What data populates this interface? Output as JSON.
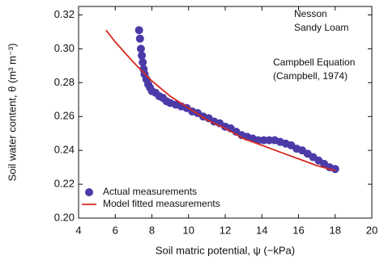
{
  "chart_data": {
    "type": "scatter",
    "x_label": "Soil matric potential, ψ (−kPa)",
    "y_label": "Soil water content, θ (m³ m⁻³)",
    "annotations": [
      "Nesson",
      "Sandy Loam",
      "Campbell Equation",
      "(Campbell, 1974)"
    ],
    "xlim": [
      4,
      20
    ],
    "xticks": [
      4,
      6,
      8,
      10,
      12,
      14,
      16,
      18,
      20
    ],
    "ylim": [
      0.2,
      0.325
    ],
    "yticks": [
      {
        "value": 0.2,
        "label": "0.20"
      },
      0.22,
      0.24,
      0.26,
      0.28,
      {
        "value": 0.3,
        "label": "0.30"
      },
      0.32
    ],
    "legend": "lower left",
    "series": [
      {
        "name": "Actual measurements",
        "color": "#4b3ba8",
        "type": "scatter",
        "x": [
          7.3,
          7.35,
          7.4,
          7.45,
          7.5,
          7.55,
          7.6,
          7.7,
          7.8,
          7.9,
          8.0,
          8.2,
          8.4,
          8.6,
          8.8,
          9.0,
          9.3,
          9.6,
          9.9,
          10.2,
          10.5,
          10.8,
          11.1,
          11.4,
          11.7,
          12.0,
          12.3,
          12.6,
          12.9,
          13.2,
          13.5,
          13.8,
          14.1,
          14.4,
          14.7,
          15.0,
          15.3,
          15.6,
          15.9,
          16.2,
          16.5,
          16.8,
          17.1,
          17.4,
          17.7,
          18.0
        ],
        "values": [
          0.311,
          0.306,
          0.3,
          0.296,
          0.292,
          0.288,
          0.285,
          0.282,
          0.279,
          0.277,
          0.275,
          0.274,
          0.272,
          0.271,
          0.269,
          0.268,
          0.267,
          0.266,
          0.265,
          0.263,
          0.262,
          0.26,
          0.259,
          0.257,
          0.256,
          0.254,
          0.253,
          0.251,
          0.249,
          0.248,
          0.247,
          0.246,
          0.246,
          0.246,
          0.246,
          0.245,
          0.244,
          0.243,
          0.241,
          0.24,
          0.238,
          0.236,
          0.234,
          0.232,
          0.23,
          0.229
        ]
      },
      {
        "name": "Model fitted measurements",
        "color": "#d62a20",
        "type": "line",
        "x": [
          5.5,
          6,
          7,
          8,
          9,
          10,
          11,
          12,
          13,
          14,
          15,
          16,
          17,
          18
        ],
        "values": [
          0.311,
          0.304,
          0.292,
          0.281,
          0.272,
          0.265,
          0.258,
          0.253,
          0.247,
          0.243,
          0.239,
          0.235,
          0.231,
          0.228
        ]
      }
    ]
  }
}
